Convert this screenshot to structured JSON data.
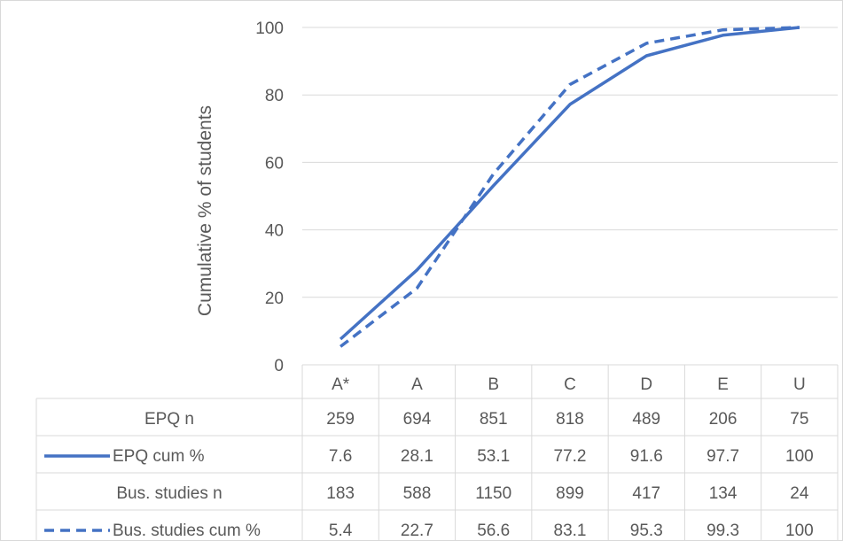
{
  "chart_data": {
    "type": "line",
    "categories": [
      "A*",
      "A",
      "B",
      "C",
      "D",
      "E",
      "U"
    ],
    "ylabel": "Cumulative % of students",
    "ylim": [
      0,
      100
    ],
    "yticks": [
      0,
      20,
      40,
      60,
      80,
      100
    ],
    "grid": true,
    "series": [
      {
        "name": "EPQ cum %",
        "values": [
          7.6,
          28.1,
          53.1,
          77.2,
          91.6,
          97.7,
          100
        ],
        "style": "solid",
        "color": "#4472c4"
      },
      {
        "name": "Bus. studies cum %",
        "values": [
          5.4,
          22.7,
          56.6,
          83.1,
          95.3,
          99.3,
          100
        ],
        "style": "dashed",
        "color": "#4472c4"
      }
    ],
    "data_table": {
      "rows": [
        {
          "label": "EPQ n",
          "legend": "none",
          "values": [
            "259",
            "694",
            "851",
            "818",
            "489",
            "206",
            "75"
          ]
        },
        {
          "label": "EPQ cum %",
          "legend": "solid",
          "values": [
            "7.6",
            "28.1",
            "53.1",
            "77.2",
            "91.6",
            "97.7",
            "100"
          ]
        },
        {
          "label": "Bus. studies n",
          "legend": "none",
          "values": [
            "183",
            "588",
            "1150",
            "899",
            "417",
            "134",
            "24"
          ]
        },
        {
          "label": "Bus. studies cum %",
          "legend": "dashed",
          "values": [
            "5.4",
            "22.7",
            "56.6",
            "83.1",
            "95.3",
            "99.3",
            "100"
          ]
        }
      ]
    }
  }
}
